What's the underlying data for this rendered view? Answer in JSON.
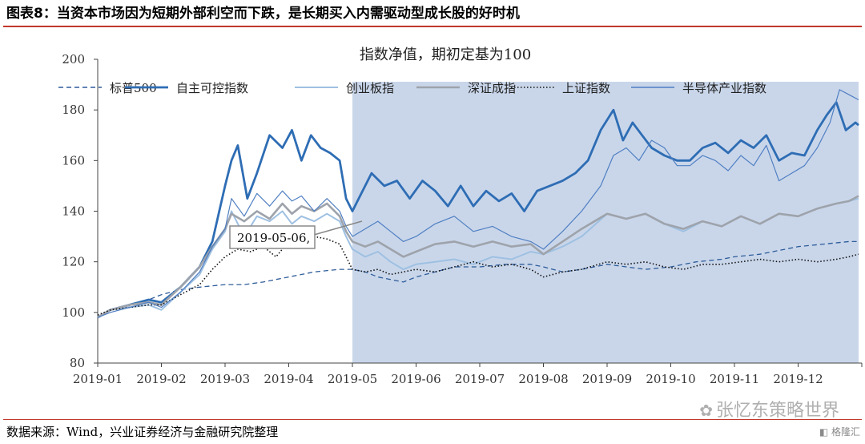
{
  "figure": {
    "title": "图表8：当资本市场因为短期外部利空而下跌，是长期买入内需驱动型成长股的好时机",
    "source": "数据来源：Wind，兴业证券经济与金融研究院整理",
    "watermark": "张忆东策略世界",
    "badge": "格隆汇"
  },
  "chart_data": {
    "type": "line",
    "title": "指数净值，期初定基为100",
    "xlabel": "",
    "ylabel": "",
    "ylim": [
      80,
      200
    ],
    "yticks": [
      80,
      100,
      120,
      140,
      160,
      180,
      200
    ],
    "x_ticks": [
      "2019-01",
      "2019-02",
      "2019-03",
      "2019-04",
      "2019-05",
      "2019-06",
      "2019-07",
      "2019-08",
      "2019-09",
      "2019-10",
      "2019-11",
      "2019-12"
    ],
    "x_range": [
      1,
      13
    ],
    "grid": false,
    "legend_position": "top",
    "shaded_region": {
      "from": 5.0,
      "to": 12.95,
      "color": "#c9d6ea"
    },
    "annotation": {
      "text": "2019-05-06,",
      "x": 5.1
    },
    "series": [
      {
        "name": "标普500",
        "style": "dashed",
        "color": "#2e5c99",
        "width": 1.3,
        "x": [
          1.0,
          1.2,
          1.5,
          1.8,
          2.0,
          2.3,
          2.6,
          3.0,
          3.3,
          3.6,
          4.0,
          4.4,
          4.8,
          5.0,
          5.2,
          5.4,
          5.6,
          5.8,
          6.0,
          6.3,
          6.6,
          7.0,
          7.4,
          7.8,
          8.0,
          8.3,
          8.6,
          9.0,
          9.3,
          9.6,
          10.0,
          10.4,
          10.8,
          11.0,
          11.4,
          11.8,
          12.0,
          12.4,
          12.8,
          12.95
        ],
        "y": [
          98,
          101,
          103,
          105,
          107,
          109,
          110,
          111,
          111,
          112,
          114,
          116,
          117,
          117,
          116,
          114,
          113,
          112,
          114,
          116,
          118,
          118,
          119,
          119,
          118,
          116,
          117,
          119,
          118,
          117,
          118,
          120,
          121,
          122,
          123,
          125,
          126,
          127,
          128,
          128
        ]
      },
      {
        "name": "自主可控指数",
        "style": "solid",
        "color": "#2e6db4",
        "width": 2.8,
        "x": [
          1.0,
          1.2,
          1.5,
          1.8,
          2.0,
          2.3,
          2.6,
          2.8,
          3.0,
          3.1,
          3.2,
          3.35,
          3.5,
          3.7,
          3.9,
          4.05,
          4.2,
          4.35,
          4.5,
          4.65,
          4.8,
          4.9,
          5.0,
          5.1,
          5.3,
          5.5,
          5.7,
          5.9,
          6.1,
          6.3,
          6.5,
          6.7,
          6.9,
          7.1,
          7.3,
          7.5,
          7.7,
          7.9,
          8.1,
          8.3,
          8.5,
          8.7,
          8.9,
          9.1,
          9.25,
          9.4,
          9.55,
          9.7,
          9.9,
          10.1,
          10.3,
          10.5,
          10.7,
          10.9,
          11.1,
          11.3,
          11.5,
          11.7,
          11.9,
          12.1,
          12.3,
          12.45,
          12.6,
          12.75,
          12.9,
          12.95
        ],
        "y": [
          98,
          101,
          103,
          105,
          104,
          110,
          118,
          128,
          150,
          160,
          166,
          145,
          155,
          170,
          165,
          172,
          160,
          170,
          165,
          163,
          160,
          145,
          140,
          145,
          155,
          150,
          152,
          145,
          152,
          148,
          142,
          150,
          142,
          148,
          144,
          147,
          140,
          148,
          150,
          152,
          155,
          160,
          172,
          180,
          168,
          175,
          170,
          165,
          162,
          160,
          160,
          165,
          167,
          163,
          168,
          165,
          170,
          160,
          163,
          162,
          172,
          178,
          183,
          172,
          175,
          174
        ]
      },
      {
        "name": "创业板指",
        "style": "solid",
        "color": "#9ec0e2",
        "width": 2.0,
        "x": [
          1.0,
          1.2,
          1.5,
          1.8,
          2.0,
          2.3,
          2.6,
          2.8,
          3.0,
          3.1,
          3.3,
          3.5,
          3.7,
          3.9,
          4.05,
          4.2,
          4.4,
          4.6,
          4.8,
          4.9,
          5.0,
          5.2,
          5.4,
          5.6,
          5.8,
          6.0,
          6.3,
          6.6,
          6.9,
          7.2,
          7.5,
          7.8,
          8.0,
          8.3,
          8.6,
          9.0,
          9.3,
          9.6,
          9.9,
          10.2,
          10.5,
          10.8,
          11.1,
          11.4,
          11.7,
          12.0,
          12.3,
          12.6,
          12.8,
          12.95
        ],
        "y": [
          98,
          101,
          102,
          103,
          101,
          108,
          115,
          125,
          132,
          140,
          130,
          138,
          136,
          140,
          135,
          138,
          136,
          139,
          136,
          130,
          125,
          122,
          124,
          120,
          117,
          119,
          120,
          121,
          119,
          122,
          121,
          124,
          123,
          126,
          130,
          139,
          137,
          139,
          135,
          132,
          136,
          134,
          138,
          135,
          139,
          138,
          141,
          143,
          144,
          145
        ]
      },
      {
        "name": "深证成指",
        "style": "solid",
        "color": "#9ea3ab",
        "width": 2.6,
        "x": [
          1.0,
          1.2,
          1.5,
          1.8,
          2.0,
          2.3,
          2.6,
          2.8,
          3.0,
          3.1,
          3.3,
          3.5,
          3.7,
          3.9,
          4.05,
          4.2,
          4.4,
          4.6,
          4.8,
          4.9,
          5.0,
          5.2,
          5.4,
          5.6,
          5.8,
          6.0,
          6.3,
          6.6,
          6.9,
          7.2,
          7.5,
          7.8,
          8.0,
          8.3,
          8.6,
          9.0,
          9.3,
          9.6,
          9.9,
          10.2,
          10.5,
          10.8,
          11.1,
          11.4,
          11.7,
          12.0,
          12.3,
          12.6,
          12.8,
          12.95
        ],
        "y": [
          98,
          101,
          103,
          104,
          103,
          110,
          118,
          126,
          133,
          139,
          136,
          140,
          137,
          143,
          139,
          142,
          140,
          143,
          138,
          132,
          128,
          126,
          128,
          125,
          122,
          124,
          127,
          128,
          126,
          128,
          126,
          127,
          123,
          128,
          133,
          139,
          137,
          139,
          135,
          133,
          136,
          134,
          138,
          135,
          139,
          138,
          141,
          143,
          144,
          146
        ]
      },
      {
        "name": "上证指数",
        "style": "dotted",
        "color": "#111111",
        "width": 1.6,
        "x": [
          1.0,
          1.2,
          1.5,
          1.8,
          2.0,
          2.3,
          2.6,
          2.8,
          3.0,
          3.2,
          3.4,
          3.6,
          3.8,
          4.0,
          4.2,
          4.4,
          4.6,
          4.8,
          4.9,
          5.0,
          5.2,
          5.4,
          5.6,
          5.8,
          6.0,
          6.3,
          6.6,
          6.9,
          7.2,
          7.5,
          7.8,
          8.0,
          8.3,
          8.6,
          9.0,
          9.3,
          9.6,
          9.9,
          10.2,
          10.5,
          10.8,
          11.1,
          11.4,
          11.7,
          12.0,
          12.3,
          12.6,
          12.8,
          12.95
        ],
        "y": [
          99,
          101,
          102,
          103,
          103,
          107,
          111,
          117,
          122,
          125,
          124,
          126,
          122,
          128,
          126,
          130,
          129,
          127,
          122,
          117,
          116,
          117,
          115,
          116,
          117,
          116,
          118,
          120,
          118,
          119,
          117,
          114,
          116,
          117,
          120,
          119,
          120,
          118,
          117,
          119,
          119,
          120,
          121,
          120,
          121,
          120,
          121,
          122,
          123
        ]
      },
      {
        "name": "半导体产业指数",
        "style": "solid",
        "color": "#4f7fc2",
        "width": 1.2,
        "x": [
          1.0,
          1.2,
          1.5,
          1.8,
          2.0,
          2.3,
          2.6,
          2.8,
          3.0,
          3.1,
          3.3,
          3.5,
          3.7,
          3.9,
          4.05,
          4.2,
          4.4,
          4.6,
          4.8,
          4.9,
          5.0,
          5.2,
          5.4,
          5.6,
          5.8,
          6.0,
          6.3,
          6.6,
          6.9,
          7.2,
          7.5,
          7.8,
          8.0,
          8.3,
          8.6,
          8.9,
          9.1,
          9.3,
          9.5,
          9.7,
          9.9,
          10.1,
          10.3,
          10.5,
          10.7,
          10.9,
          11.1,
          11.3,
          11.5,
          11.7,
          11.9,
          12.1,
          12.3,
          12.5,
          12.65,
          12.8,
          12.95
        ],
        "y": [
          98,
          100,
          102,
          104,
          102,
          108,
          116,
          126,
          133,
          145,
          138,
          147,
          142,
          148,
          144,
          146,
          140,
          145,
          140,
          134,
          130,
          133,
          136,
          132,
          128,
          130,
          135,
          138,
          132,
          134,
          130,
          128,
          125,
          132,
          140,
          150,
          162,
          165,
          160,
          168,
          165,
          158,
          158,
          162,
          160,
          156,
          162,
          158,
          166,
          152,
          155,
          158,
          165,
          175,
          188,
          186,
          184
        ]
      }
    ]
  }
}
